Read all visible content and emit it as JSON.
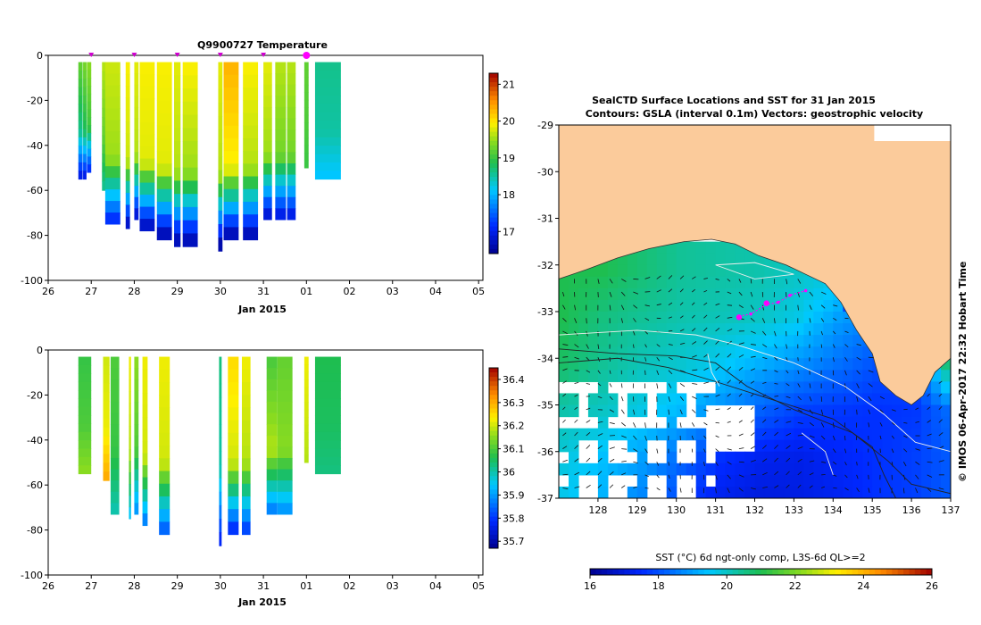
{
  "chart_data": [
    {
      "type": "heatmap",
      "title": "Q9900727  Temperature",
      "xlabel": "Jan 2015",
      "x_ticks": [
        "26",
        "27",
        "28",
        "29",
        "30",
        "31",
        "01",
        "02",
        "03",
        "04",
        "05"
      ],
      "xlim": [
        26,
        36.1
      ],
      "ylim": [
        -100,
        0
      ],
      "y_ticks": [
        "0",
        "-20",
        "-40",
        "-60",
        "-80",
        "-100"
      ],
      "y_tick_values": [
        0,
        -20,
        -40,
        -60,
        -80,
        -100
      ],
      "colorbar_ticks": [
        "21",
        "20",
        "19",
        "18",
        "17"
      ],
      "colorbar_values": [
        21,
        20,
        19,
        18,
        17
      ],
      "colorbar_range": [
        16.4,
        21.3
      ],
      "profile_markers": [
        27.0,
        28.0,
        29.0,
        30.0,
        31.0
      ],
      "current_marker": 32.0,
      "profiles": [
        {
          "day": 26.75,
          "w": 0.1,
          "depth": -55,
          "top": 19.2,
          "mid": 18.6,
          "bot": 17.0
        },
        {
          "day": 26.85,
          "w": 0.08,
          "depth": -55,
          "top": 19.3,
          "mid": 18.8,
          "bot": 17.0
        },
        {
          "day": 26.95,
          "w": 0.1,
          "depth": -52,
          "top": 19.4,
          "mid": 19.0,
          "bot": 17.2
        },
        {
          "day": 27.3,
          "w": 0.1,
          "depth": -60,
          "top": 19.6,
          "mid": 19.2,
          "bot": 18.6
        },
        {
          "day": 27.5,
          "w": 0.35,
          "depth": -75,
          "top": 19.7,
          "mid": 19.5,
          "bot": 17.2
        },
        {
          "day": 27.85,
          "w": 0.1,
          "depth": -77,
          "top": 19.9,
          "mid": 19.7,
          "bot": 16.8
        },
        {
          "day": 28.05,
          "w": 0.1,
          "depth": -73,
          "top": 19.8,
          "mid": 19.6,
          "bot": 16.9
        },
        {
          "day": 28.3,
          "w": 0.35,
          "depth": -78,
          "top": 19.9,
          "mid": 19.8,
          "bot": 16.8
        },
        {
          "day": 28.7,
          "w": 0.35,
          "depth": -82,
          "top": 19.9,
          "mid": 19.8,
          "bot": 16.7
        },
        {
          "day": 29.0,
          "w": 0.15,
          "depth": -85,
          "top": 19.8,
          "mid": 19.6,
          "bot": 16.7
        },
        {
          "day": 29.3,
          "w": 0.35,
          "depth": -85,
          "top": 19.9,
          "mid": 19.5,
          "bot": 16.7
        },
        {
          "day": 30.0,
          "w": 0.1,
          "depth": -87,
          "top": 19.8,
          "mid": 19.6,
          "bot": 16.6
        },
        {
          "day": 30.25,
          "w": 0.35,
          "depth": -82,
          "top": 20.3,
          "mid": 19.9,
          "bot": 16.7
        },
        {
          "day": 30.7,
          "w": 0.35,
          "depth": -82,
          "top": 19.9,
          "mid": 19.6,
          "bot": 16.7
        },
        {
          "day": 31.1,
          "w": 0.2,
          "depth": -73,
          "top": 19.8,
          "mid": 19.5,
          "bot": 16.9
        },
        {
          "day": 31.4,
          "w": 0.25,
          "depth": -73,
          "top": 19.6,
          "mid": 19.3,
          "bot": 17.0
        },
        {
          "day": 31.65,
          "w": 0.2,
          "depth": -73,
          "top": 19.6,
          "mid": 19.3,
          "bot": 17.0
        },
        {
          "day": 32.0,
          "w": 0.1,
          "depth": -50,
          "top": 19.2,
          "mid": 19.1,
          "bot": 19.0
        },
        {
          "day": 32.5,
          "w": 0.6,
          "depth": -55,
          "top": 18.6,
          "mid": 18.5,
          "bot": 18.1
        }
      ]
    },
    {
      "type": "heatmap",
      "title": "",
      "xlabel": "Jan 2015",
      "x_ticks": [
        "26",
        "27",
        "28",
        "29",
        "30",
        "31",
        "01",
        "02",
        "03",
        "04",
        "05"
      ],
      "xlim": [
        26,
        36.1
      ],
      "ylim": [
        -100,
        0
      ],
      "y_ticks": [
        "0",
        "-20",
        "-40",
        "-60",
        "-80",
        "-100"
      ],
      "y_tick_values": [
        0,
        -20,
        -40,
        -60,
        -80,
        -100
      ],
      "colorbar_ticks": [
        "36.4",
        "36.3",
        "36.2",
        "36.1",
        "36",
        "35.9",
        "35.8",
        "35.7"
      ],
      "colorbar_values": [
        36.4,
        36.3,
        36.2,
        36.1,
        36.0,
        35.9,
        35.8,
        35.7
      ],
      "colorbar_range": [
        35.67,
        36.45
      ],
      "profiles": [
        {
          "day": 26.85,
          "w": 0.3,
          "depth": -55,
          "top": 36.08,
          "mid": 36.1,
          "bot": 36.15
        },
        {
          "day": 27.35,
          "w": 0.15,
          "depth": -58,
          "top": 36.2,
          "mid": 36.22,
          "bot": 36.3
        },
        {
          "day": 27.55,
          "w": 0.2,
          "depth": -73,
          "top": 36.1,
          "mid": 36.08,
          "bot": 36.0
        },
        {
          "day": 27.9,
          "w": 0.05,
          "depth": -75,
          "top": 36.22,
          "mid": 36.18,
          "bot": 35.95
        },
        {
          "day": 28.05,
          "w": 0.1,
          "depth": -73,
          "top": 36.15,
          "mid": 36.1,
          "bot": 35.9
        },
        {
          "day": 28.25,
          "w": 0.12,
          "depth": -78,
          "top": 36.22,
          "mid": 36.2,
          "bot": 35.88
        },
        {
          "day": 28.7,
          "w": 0.25,
          "depth": -82,
          "top": 36.22,
          "mid": 36.2,
          "bot": 35.85
        },
        {
          "day": 30.0,
          "w": 0.06,
          "depth": -87,
          "top": 36.03,
          "mid": 36.0,
          "bot": 35.78
        },
        {
          "day": 30.3,
          "w": 0.25,
          "depth": -82,
          "top": 36.25,
          "mid": 36.2,
          "bot": 35.8
        },
        {
          "day": 30.6,
          "w": 0.2,
          "depth": -82,
          "top": 36.22,
          "mid": 36.18,
          "bot": 35.82
        },
        {
          "day": 31.2,
          "w": 0.25,
          "depth": -73,
          "top": 36.1,
          "mid": 36.18,
          "bot": 35.88
        },
        {
          "day": 31.5,
          "w": 0.35,
          "depth": -73,
          "top": 36.12,
          "mid": 36.15,
          "bot": 35.9
        },
        {
          "day": 32.0,
          "w": 0.1,
          "depth": -50,
          "top": 36.22,
          "mid": 36.2,
          "bot": 36.18
        },
        {
          "day": 32.5,
          "w": 0.6,
          "depth": -55,
          "top": 36.06,
          "mid": 36.05,
          "bot": 36.03
        }
      ]
    },
    {
      "type": "heatmap",
      "title": "SealCTD Surface Locations and SST for 31 Jan 2015",
      "subtitle": "Contours: GSLA (interval 0.1m) Vectors: geostrophic velocity",
      "x_ticks": [
        "128",
        "129",
        "130",
        "131",
        "132",
        "133",
        "134",
        "135",
        "136",
        "137"
      ],
      "x_tick_values": [
        128,
        129,
        130,
        131,
        132,
        133,
        134,
        135,
        136,
        137
      ],
      "xlim": [
        127,
        137
      ],
      "ylim": [
        -37,
        -29
      ],
      "y_ticks": [
        "-29",
        "-30",
        "-31",
        "-32",
        "-33",
        "-34",
        "-35",
        "-36",
        "-37"
      ],
      "y_tick_values": [
        -29,
        -30,
        -31,
        -32,
        -33,
        -34,
        -35,
        -36,
        -37
      ],
      "colorbar_label": "SST (°C) 6d ngt-only comp, L3S-6d QL>=2",
      "colorbar_ticks": [
        "16",
        "18",
        "20",
        "22",
        "24",
        "26"
      ],
      "colorbar_values": [
        16,
        18,
        20,
        22,
        24,
        26
      ],
      "colorbar_range": [
        16,
        26
      ],
      "side_label": "© IMOS 06-Apr-2017 22:32 Hobart Time",
      "track": [
        [
          131.6,
          -33.1
        ],
        [
          131.9,
          -33.05
        ],
        [
          132.3,
          -32.85
        ],
        [
          132.6,
          -32.8
        ],
        [
          132.9,
          -32.65
        ],
        [
          133.3,
          -32.55
        ]
      ],
      "track_highlight": [
        [
          132.3,
          -32.82
        ],
        [
          131.6,
          -33.12
        ]
      ],
      "land_color": "#fbcb9b",
      "coast": [
        [
          127,
          -32.3
        ],
        [
          127.7,
          -32.1
        ],
        [
          128.5,
          -31.85
        ],
        [
          129.3,
          -31.65
        ],
        [
          130.2,
          -31.5
        ],
        [
          130.9,
          -31.45
        ],
        [
          131.5,
          -31.55
        ],
        [
          132.1,
          -31.8
        ],
        [
          132.8,
          -32.0
        ],
        [
          133.3,
          -32.2
        ],
        [
          133.8,
          -32.4
        ],
        [
          134.2,
          -32.8
        ],
        [
          134.6,
          -33.4
        ],
        [
          135.0,
          -33.9
        ],
        [
          135.2,
          -34.5
        ],
        [
          135.6,
          -34.8
        ],
        [
          136.0,
          -35.0
        ],
        [
          136.3,
          -34.8
        ],
        [
          136.6,
          -34.3
        ],
        [
          137,
          -34.0
        ]
      ],
      "sst_grid": {
        "lon": [
          127,
          128,
          129,
          130,
          131,
          132,
          133,
          134,
          135,
          136,
          137
        ],
        "lat": [
          -32,
          -33,
          -34,
          -35,
          -36,
          -37
        ],
        "values": [
          [
            21.0,
            21.0,
            20.7,
            20.4,
            20.3,
            20.2,
            20.0,
            19.8,
            0,
            0,
            0
          ],
          [
            21.0,
            20.6,
            20.4,
            20.2,
            20.1,
            20.0,
            19.7,
            19.0,
            18.6,
            0,
            0
          ],
          [
            20.8,
            20.4,
            20.1,
            19.9,
            19.6,
            19.2,
            18.8,
            18.4,
            18.0,
            17.9,
            21.5
          ],
          [
            20.2,
            20.0,
            19.7,
            19.3,
            18.7,
            18.2,
            17.8,
            17.7,
            17.6,
            17.7,
            18.5
          ],
          [
            19.8,
            19.4,
            19.0,
            18.3,
            17.6,
            17.3,
            17.2,
            17.4,
            17.6,
            17.8,
            18.2
          ],
          [
            19.6,
            19.2,
            18.6,
            17.8,
            17.2,
            17.0,
            17.1,
            17.3,
            17.6,
            17.8,
            18.2
          ]
        ]
      }
    }
  ]
}
